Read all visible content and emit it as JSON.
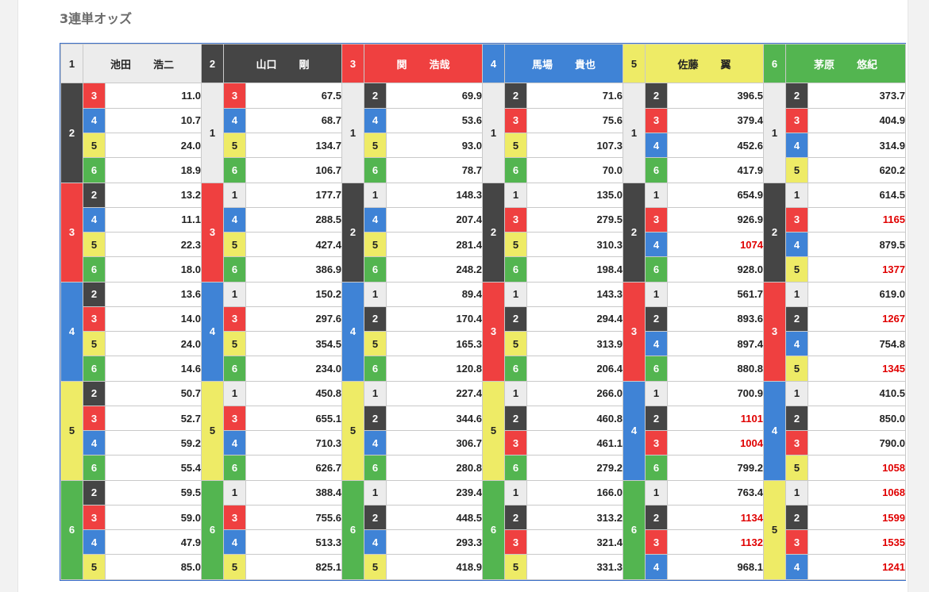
{
  "title": "3連単オッズ",
  "colors": {
    "1": {
      "bg": "#ececec",
      "fg": "#222222"
    },
    "2": {
      "bg": "#454545",
      "fg": "#ffffff"
    },
    "3": {
      "bg": "#ef4040",
      "fg": "#ffffff"
    },
    "4": {
      "bg": "#3f83d6",
      "fg": "#ffffff"
    },
    "5": {
      "bg": "#eeeb66",
      "fg": "#222222"
    },
    "6": {
      "bg": "#53b550",
      "fg": "#ffffff"
    },
    "red_odds": "#e00000"
  },
  "boats": [
    {
      "num": "1",
      "surname": "池田",
      "given": "浩二"
    },
    {
      "num": "2",
      "surname": "山口",
      "given": "剛"
    },
    {
      "num": "3",
      "surname": "関",
      "given": "浩哉"
    },
    {
      "num": "4",
      "surname": "馬場",
      "given": "貴也"
    },
    {
      "num": "5",
      "surname": "佐藤",
      "given": "翼"
    },
    {
      "num": "6",
      "surname": "茅原",
      "given": "悠紀"
    }
  ],
  "odds": [
    {
      "first": "1",
      "groups": [
        {
          "second": "2",
          "rows": [
            [
              "3",
              "11.0"
            ],
            [
              "4",
              "10.7"
            ],
            [
              "5",
              "24.0"
            ],
            [
              "6",
              "18.9"
            ]
          ]
        },
        {
          "second": "3",
          "rows": [
            [
              "2",
              "13.2"
            ],
            [
              "4",
              "11.1"
            ],
            [
              "5",
              "22.3"
            ],
            [
              "6",
              "18.0"
            ]
          ]
        },
        {
          "second": "4",
          "rows": [
            [
              "2",
              "13.6"
            ],
            [
              "3",
              "14.0"
            ],
            [
              "5",
              "24.0"
            ],
            [
              "6",
              "14.6"
            ]
          ]
        },
        {
          "second": "5",
          "rows": [
            [
              "2",
              "50.7"
            ],
            [
              "3",
              "52.7"
            ],
            [
              "4",
              "59.2"
            ],
            [
              "6",
              "55.4"
            ]
          ]
        },
        {
          "second": "6",
          "rows": [
            [
              "2",
              "59.5"
            ],
            [
              "3",
              "59.0"
            ],
            [
              "4",
              "47.9"
            ],
            [
              "5",
              "85.0"
            ]
          ]
        }
      ]
    },
    {
      "first": "2",
      "groups": [
        {
          "second": "1",
          "rows": [
            [
              "3",
              "67.5"
            ],
            [
              "4",
              "68.7"
            ],
            [
              "5",
              "134.7"
            ],
            [
              "6",
              "106.7"
            ]
          ]
        },
        {
          "second": "3",
          "rows": [
            [
              "1",
              "177.7"
            ],
            [
              "4",
              "288.5"
            ],
            [
              "5",
              "427.4"
            ],
            [
              "6",
              "386.9"
            ]
          ]
        },
        {
          "second": "4",
          "rows": [
            [
              "1",
              "150.2"
            ],
            [
              "3",
              "297.6"
            ],
            [
              "5",
              "354.5"
            ],
            [
              "6",
              "234.0"
            ]
          ]
        },
        {
          "second": "5",
          "rows": [
            [
              "1",
              "450.8"
            ],
            [
              "3",
              "655.1"
            ],
            [
              "4",
              "710.3"
            ],
            [
              "6",
              "626.7"
            ]
          ]
        },
        {
          "second": "6",
          "rows": [
            [
              "1",
              "388.4"
            ],
            [
              "3",
              "755.6"
            ],
            [
              "4",
              "513.3"
            ],
            [
              "5",
              "825.1"
            ]
          ]
        }
      ]
    },
    {
      "first": "3",
      "groups": [
        {
          "second": "1",
          "rows": [
            [
              "2",
              "69.9"
            ],
            [
              "4",
              "53.6"
            ],
            [
              "5",
              "93.0"
            ],
            [
              "6",
              "78.7"
            ]
          ]
        },
        {
          "second": "2",
          "rows": [
            [
              "1",
              "148.3"
            ],
            [
              "4",
              "207.4"
            ],
            [
              "5",
              "281.4"
            ],
            [
              "6",
              "248.2"
            ]
          ]
        },
        {
          "second": "4",
          "rows": [
            [
              "1",
              "89.4"
            ],
            [
              "2",
              "170.4"
            ],
            [
              "5",
              "165.3"
            ],
            [
              "6",
              "120.8"
            ]
          ]
        },
        {
          "second": "5",
          "rows": [
            [
              "1",
              "227.4"
            ],
            [
              "2",
              "344.6"
            ],
            [
              "4",
              "306.7"
            ],
            [
              "6",
              "280.8"
            ]
          ]
        },
        {
          "second": "6",
          "rows": [
            [
              "1",
              "239.4"
            ],
            [
              "2",
              "448.5"
            ],
            [
              "4",
              "293.3"
            ],
            [
              "5",
              "418.9"
            ]
          ]
        }
      ]
    },
    {
      "first": "4",
      "groups": [
        {
          "second": "1",
          "rows": [
            [
              "2",
              "71.6"
            ],
            [
              "3",
              "75.6"
            ],
            [
              "5",
              "107.3"
            ],
            [
              "6",
              "70.0"
            ]
          ]
        },
        {
          "second": "2",
          "rows": [
            [
              "1",
              "135.0"
            ],
            [
              "3",
              "279.5"
            ],
            [
              "5",
              "310.3"
            ],
            [
              "6",
              "198.4"
            ]
          ]
        },
        {
          "second": "3",
          "rows": [
            [
              "1",
              "143.3"
            ],
            [
              "2",
              "294.4"
            ],
            [
              "5",
              "313.9"
            ],
            [
              "6",
              "206.4"
            ]
          ]
        },
        {
          "second": "5",
          "rows": [
            [
              "1",
              "266.0"
            ],
            [
              "2",
              "460.8"
            ],
            [
              "3",
              "461.1"
            ],
            [
              "6",
              "279.2"
            ]
          ]
        },
        {
          "second": "6",
          "rows": [
            [
              "1",
              "166.0"
            ],
            [
              "2",
              "313.2"
            ],
            [
              "3",
              "321.4"
            ],
            [
              "5",
              "331.3"
            ]
          ]
        }
      ]
    },
    {
      "first": "5",
      "groups": [
        {
          "second": "1",
          "rows": [
            [
              "2",
              "396.5"
            ],
            [
              "3",
              "379.4"
            ],
            [
              "4",
              "452.6"
            ],
            [
              "6",
              "417.9"
            ]
          ]
        },
        {
          "second": "2",
          "rows": [
            [
              "1",
              "654.9"
            ],
            [
              "3",
              "926.9"
            ],
            [
              "4",
              "1074"
            ],
            [
              "6",
              "928.0"
            ]
          ]
        },
        {
          "second": "3",
          "rows": [
            [
              "1",
              "561.7"
            ],
            [
              "2",
              "893.6"
            ],
            [
              "4",
              "897.4"
            ],
            [
              "6",
              "880.8"
            ]
          ]
        },
        {
          "second": "4",
          "rows": [
            [
              "1",
              "700.9"
            ],
            [
              "2",
              "1101"
            ],
            [
              "3",
              "1004"
            ],
            [
              "6",
              "799.2"
            ]
          ]
        },
        {
          "second": "6",
          "rows": [
            [
              "1",
              "763.4"
            ],
            [
              "2",
              "1134"
            ],
            [
              "3",
              "1132"
            ],
            [
              "4",
              "968.1"
            ]
          ]
        }
      ]
    },
    {
      "first": "6",
      "groups": [
        {
          "second": "1",
          "rows": [
            [
              "2",
              "373.7"
            ],
            [
              "3",
              "404.9"
            ],
            [
              "4",
              "314.9"
            ],
            [
              "5",
              "620.2"
            ]
          ]
        },
        {
          "second": "2",
          "rows": [
            [
              "1",
              "614.5"
            ],
            [
              "3",
              "1165"
            ],
            [
              "4",
              "879.5"
            ],
            [
              "5",
              "1377"
            ]
          ]
        },
        {
          "second": "3",
          "rows": [
            [
              "1",
              "619.0"
            ],
            [
              "2",
              "1267"
            ],
            [
              "4",
              "754.8"
            ],
            [
              "5",
              "1345"
            ]
          ]
        },
        {
          "second": "4",
          "rows": [
            [
              "1",
              "410.5"
            ],
            [
              "2",
              "850.0"
            ],
            [
              "3",
              "790.0"
            ],
            [
              "5",
              "1058"
            ]
          ]
        },
        {
          "second": "5",
          "rows": [
            [
              "1",
              "1068"
            ],
            [
              "2",
              "1599"
            ],
            [
              "3",
              "1535"
            ],
            [
              "4",
              "1241"
            ]
          ]
        }
      ]
    }
  ]
}
